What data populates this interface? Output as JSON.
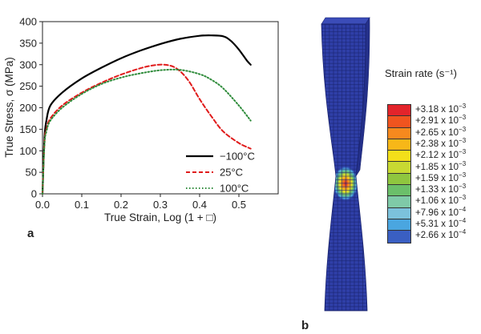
{
  "chart_data": [
    {
      "type": "line",
      "panel_label": "a",
      "xlabel": "True Strain, Log (1 + □)",
      "ylabel": "True Stress, σ (MPa)",
      "xlim": [
        0.0,
        0.6
      ],
      "ylim": [
        0,
        400
      ],
      "xticks": [
        "0.0",
        "0.1",
        "0.2",
        "0.3",
        "0.4",
        "0.5"
      ],
      "yticks": [
        "0",
        "50",
        "100",
        "150",
        "200",
        "250",
        "300",
        "350",
        "400"
      ],
      "grid": false,
      "legend_position": "bottom-right",
      "series": [
        {
          "name": "−100°C",
          "color": "#000000",
          "style": "solid",
          "x": [
            0.0,
            0.005,
            0.01,
            0.02,
            0.05,
            0.1,
            0.15,
            0.2,
            0.25,
            0.3,
            0.35,
            0.4,
            0.43,
            0.46,
            0.48,
            0.5,
            0.52,
            0.53
          ],
          "y": [
            0,
            130,
            170,
            205,
            235,
            268,
            293,
            315,
            333,
            348,
            360,
            367,
            368,
            366,
            355,
            335,
            310,
            300
          ]
        },
        {
          "name": "25°C",
          "color": "#e01b1b",
          "style": "dashed",
          "x": [
            0.0,
            0.005,
            0.01,
            0.02,
            0.05,
            0.1,
            0.15,
            0.2,
            0.25,
            0.28,
            0.31,
            0.34,
            0.37,
            0.4,
            0.43,
            0.46,
            0.5,
            0.53
          ],
          "y": [
            0,
            120,
            150,
            175,
            205,
            235,
            258,
            277,
            292,
            298,
            300,
            292,
            265,
            220,
            180,
            145,
            118,
            105
          ]
        },
        {
          "name": "100°C",
          "color": "#2e8b3a",
          "style": "dash-dot",
          "x": [
            0.0,
            0.005,
            0.01,
            0.02,
            0.05,
            0.1,
            0.15,
            0.2,
            0.25,
            0.3,
            0.35,
            0.4,
            0.43,
            0.46,
            0.5,
            0.53
          ],
          "y": [
            0,
            115,
            145,
            170,
            200,
            232,
            255,
            270,
            280,
            287,
            288,
            278,
            265,
            245,
            205,
            170
          ]
        }
      ]
    },
    {
      "type": "heatmap",
      "panel_label": "b",
      "title": "Strain rate (s⁻¹)",
      "legend_position": "right",
      "colorbar": [
        {
          "label": "+3.18 x 10",
          "exp": "−3",
          "color": "#e3242b"
        },
        {
          "label": "+2.91 x 10",
          "exp": "−3",
          "color": "#f0541f"
        },
        {
          "label": "+2.65 x 10",
          "exp": "−3",
          "color": "#f6891e"
        },
        {
          "label": "+2.38 x 10",
          "exp": "−3",
          "color": "#f7b718"
        },
        {
          "label": "+2.12 x 10",
          "exp": "−3",
          "color": "#f3df1a"
        },
        {
          "label": "+1.85 x 10",
          "exp": "−3",
          "color": "#c8d932"
        },
        {
          "label": "+1.59 x 10",
          "exp": "−3",
          "color": "#8fc63f"
        },
        {
          "label": "+1.33 x 10",
          "exp": "−3",
          "color": "#6bbf6a"
        },
        {
          "label": "+1.06 x 10",
          "exp": "−3",
          "color": "#7fcaa8"
        },
        {
          "label": "+7.96 x 10",
          "exp": "−4",
          "color": "#7cc2dc"
        },
        {
          "label": "+5.31 x 10",
          "exp": "−4",
          "color": "#4aa6e0"
        },
        {
          "label": "+2.66 x 10",
          "exp": "−4",
          "color": "#3a5fc2"
        }
      ],
      "specimen_color": "#2f3fa8",
      "mesh_color": "#1a2470"
    }
  ]
}
